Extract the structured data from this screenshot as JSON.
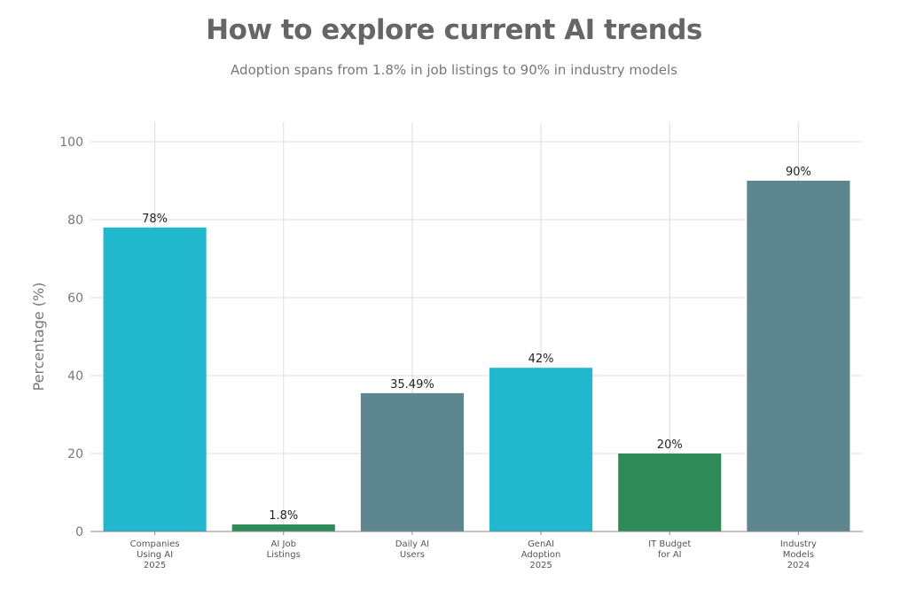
{
  "chart_data": {
    "type": "bar",
    "title": "How to explore current AI trends",
    "subtitle": "Adoption spans from 1.8% in job listings to 90% in industry models",
    "xlabel": "",
    "ylabel": "Percentage (%)",
    "ylim": [
      0,
      100
    ],
    "yticks": [
      0,
      20,
      40,
      60,
      80,
      100
    ],
    "grid": true,
    "categories": [
      [
        "Companies",
        "Using AI",
        "2025"
      ],
      [
        "AI Job",
        "Listings"
      ],
      [
        "Daily AI",
        "Users"
      ],
      [
        "GenAI",
        "Adoption",
        "2025"
      ],
      [
        "IT Budget",
        "for AI"
      ],
      [
        "Industry",
        "Models",
        "2024"
      ]
    ],
    "values": [
      78,
      1.8,
      35.49,
      42,
      20,
      90
    ],
    "data_labels": [
      "78%",
      "1.8%",
      "35.49%",
      "42%",
      "20%",
      "90%"
    ],
    "colors": [
      "#21b8cd",
      "#2e8b57",
      "#5e868e",
      "#21b8cd",
      "#2e8b57",
      "#5e868e"
    ]
  }
}
